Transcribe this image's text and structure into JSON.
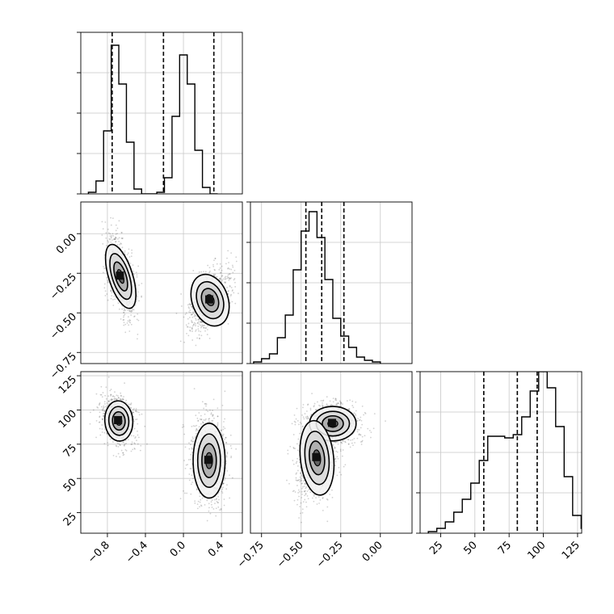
{
  "chart_data": [
    {
      "panel": "hist-param1",
      "type": "histogram",
      "x_range": [
        -1.08,
        0.62
      ],
      "y_range": [
        0,
        1.0
      ],
      "bins": {
        "x0": -1.0,
        "width": 0.08,
        "counts": [
          0.01,
          0.08,
          0.39,
          0.92,
          0.68,
          0.32,
          0.03,
          0.0,
          0.0,
          0.01,
          0.1,
          0.48,
          0.86,
          0.68,
          0.27,
          0.04,
          0.0
        ]
      },
      "quantiles": [
        -0.75,
        -0.21,
        0.32
      ],
      "x_ticks": [
        -0.8,
        -0.4,
        0.0,
        0.4
      ],
      "y_ticks": [
        0,
        0.25,
        0.5,
        0.75,
        1.0
      ]
    },
    {
      "panel": "scatter-param1-param2",
      "type": "scatter-density",
      "x_range": [
        -1.08,
        0.62
      ],
      "y_range": [
        -0.82,
        0.2
      ],
      "clusters": [
        {
          "cx": -0.66,
          "cy": -0.27,
          "sx": 0.06,
          "sy": 0.1,
          "rho": -0.5
        },
        {
          "cx": 0.28,
          "cy": -0.42,
          "sx": 0.09,
          "sy": 0.08,
          "rho": 0.55
        }
      ],
      "x_ticks": [
        -0.8,
        -0.4,
        0.0,
        0.4
      ],
      "y_ticks": [
        0.0,
        -0.25,
        -0.5,
        -0.75
      ],
      "y_tick_labels": [
        "0.00",
        "−0.25",
        "−0.50",
        "−0.75"
      ]
    },
    {
      "panel": "hist-param2",
      "type": "histogram",
      "x_range": [
        -0.82,
        0.2
      ],
      "y_range": [
        0,
        1.0
      ],
      "bins": {
        "x0": -0.8,
        "width": 0.05,
        "counts": [
          0.01,
          0.03,
          0.06,
          0.16,
          0.3,
          0.58,
          0.82,
          0.94,
          0.78,
          0.52,
          0.28,
          0.17,
          0.1,
          0.04,
          0.02,
          0.01
        ]
      },
      "quantiles": [
        -0.47,
        -0.37,
        -0.23
      ],
      "x_ticks": [
        -0.75,
        -0.5,
        -0.25,
        0.0
      ],
      "y_ticks": [
        0,
        0.25,
        0.5,
        0.75,
        1.0
      ]
    },
    {
      "panel": "scatter-param1-param3",
      "type": "scatter-density",
      "x_range": [
        -1.08,
        0.62
      ],
      "y_range": [
        10,
        128
      ],
      "clusters": [
        {
          "cx": -0.68,
          "cy": 92,
          "sx": 0.07,
          "sy": 7,
          "rho": -0.2
        },
        {
          "cx": 0.27,
          "cy": 63,
          "sx": 0.08,
          "sy": 13,
          "rho": 0.0
        }
      ],
      "x_ticks": [
        -0.8,
        -0.4,
        0.0,
        0.4
      ],
      "x_tick_labels": [
        "−0.8",
        "−0.4",
        "0.0",
        "0.4"
      ],
      "y_ticks": [
        125,
        100,
        75,
        50,
        25
      ],
      "y_tick_labels": [
        "125",
        "100",
        "75",
        "50",
        "25"
      ]
    },
    {
      "panel": "scatter-param2-param3",
      "type": "scatter-density",
      "x_range": [
        -0.82,
        0.2
      ],
      "y_range": [
        10,
        128
      ],
      "clusters": [
        {
          "cx": -0.3,
          "cy": 90,
          "sx": 0.07,
          "sy": 6,
          "rho": 0.0
        },
        {
          "cx": -0.4,
          "cy": 65,
          "sx": 0.05,
          "sy": 13,
          "rho": 0.3
        }
      ],
      "x_ticks": [
        -0.75,
        -0.5,
        -0.25,
        0.0
      ],
      "x_tick_labels": [
        "−0.75",
        "−0.50",
        "−0.25",
        "0.00"
      ]
    },
    {
      "panel": "hist-param3",
      "type": "histogram",
      "x_range": [
        10,
        128
      ],
      "y_range": [
        0,
        1.0
      ],
      "bins": {
        "x0": 16,
        "width": 6.2,
        "counts": [
          0.01,
          0.03,
          0.07,
          0.13,
          0.21,
          0.31,
          0.45,
          0.6,
          0.6,
          0.59,
          0.61,
          0.72,
          0.88,
          1.0,
          0.9,
          0.66,
          0.35,
          0.11,
          0.03
        ]
      },
      "quantiles": [
        56.5,
        81,
        95.5
      ],
      "x_ticks": [
        25,
        50,
        75,
        100,
        125
      ],
      "x_tick_labels": [
        "25",
        "50",
        "75",
        "100",
        "125"
      ],
      "y_ticks": [
        0,
        0.25,
        0.5,
        0.75,
        1.0
      ]
    }
  ]
}
